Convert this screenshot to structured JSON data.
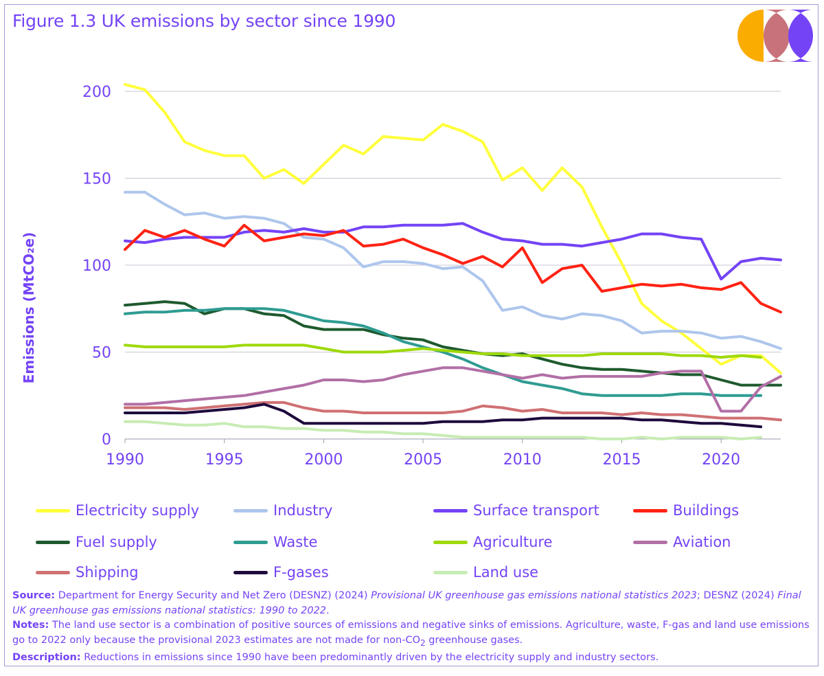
{
  "title": "Figure 1.3 UK emissions by sector since 1990",
  "colors": {
    "text": "#7443f6",
    "frame": "#a89ad8",
    "grid": "#c7c7d6",
    "logo": [
      "#fbac00",
      "#c8737c",
      "#7443f6"
    ]
  },
  "chart_data": {
    "type": "line",
    "ylabel": "Emissions (MtCO₂e)",
    "xlim": [
      1990,
      2023
    ],
    "ylim": [
      0,
      200
    ],
    "yticks": [
      0,
      50,
      100,
      150,
      200
    ],
    "xticks": [
      1990,
      1995,
      2000,
      2005,
      2010,
      2015,
      2020
    ],
    "grid": "horizontal",
    "legend_position": "bottom",
    "x_start": 1990,
    "series": [
      {
        "name": "Electricity supply",
        "color": "#ffff3c",
        "values": [
          204,
          201,
          188,
          171,
          166,
          163,
          163,
          150,
          155,
          147,
          158,
          169,
          164,
          174,
          173,
          172,
          181,
          177,
          171,
          149,
          156,
          143,
          156,
          145,
          122,
          101,
          78,
          68,
          61,
          52,
          43,
          48,
          48,
          38
        ]
      },
      {
        "name": "Industry",
        "color": "#aec6ec",
        "values": [
          142,
          142,
          135,
          129,
          130,
          127,
          128,
          127,
          124,
          116,
          115,
          110,
          99,
          102,
          102,
          101,
          98,
          99,
          91,
          74,
          76,
          71,
          69,
          72,
          71,
          68,
          61,
          62,
          62,
          61,
          58,
          59,
          56,
          52
        ]
      },
      {
        "name": "Surface transport",
        "color": "#7443f6",
        "values": [
          114,
          113,
          115,
          116,
          116,
          116,
          119,
          120,
          119,
          121,
          119,
          119,
          122,
          122,
          123,
          123,
          123,
          124,
          119,
          115,
          114,
          112,
          112,
          111,
          113,
          115,
          118,
          118,
          116,
          115,
          92,
          102,
          104,
          103
        ]
      },
      {
        "name": "Buildings",
        "color": "#ff2314",
        "values": [
          109,
          120,
          116,
          120,
          115,
          111,
          123,
          114,
          116,
          118,
          117,
          120,
          111,
          112,
          115,
          110,
          106,
          101,
          105,
          99,
          110,
          90,
          98,
          100,
          85,
          87,
          89,
          88,
          89,
          87,
          86,
          90,
          78,
          73
        ]
      },
      {
        "name": "Fuel supply",
        "color": "#1e5a2e",
        "values": [
          77,
          78,
          79,
          78,
          72,
          75,
          75,
          72,
          71,
          65,
          63,
          63,
          63,
          60,
          58,
          57,
          53,
          51,
          49,
          48,
          49,
          46,
          43,
          41,
          40,
          40,
          39,
          38,
          37,
          37,
          34,
          31,
          31,
          31
        ]
      },
      {
        "name": "Waste",
        "color": "#2f9c92",
        "values": [
          72,
          73,
          73,
          74,
          74,
          75,
          75,
          75,
          74,
          71,
          68,
          67,
          65,
          61,
          56,
          53,
          50,
          46,
          41,
          37,
          33,
          31,
          29,
          26,
          25,
          25,
          25,
          25,
          26,
          26,
          25,
          25,
          25
        ]
      },
      {
        "name": "Agriculture",
        "color": "#9ed90a",
        "values": [
          54,
          53,
          53,
          53,
          53,
          53,
          54,
          54,
          54,
          54,
          52,
          50,
          50,
          50,
          51,
          52,
          51,
          50,
          49,
          49,
          48,
          48,
          48,
          48,
          49,
          49,
          49,
          49,
          48,
          48,
          47,
          48,
          47
        ]
      },
      {
        "name": "Aviation",
        "color": "#b26fa6",
        "values": [
          20,
          20,
          21,
          22,
          23,
          24,
          25,
          27,
          29,
          31,
          34,
          34,
          33,
          34,
          37,
          39,
          41,
          41,
          39,
          37,
          35,
          37,
          35,
          36,
          36,
          36,
          36,
          38,
          39,
          39,
          16,
          16,
          30,
          36
        ]
      },
      {
        "name": "Shipping",
        "color": "#cf7073",
        "values": [
          18,
          18,
          18,
          17,
          18,
          19,
          20,
          21,
          21,
          18,
          16,
          16,
          15,
          15,
          15,
          15,
          15,
          16,
          19,
          18,
          16,
          17,
          15,
          15,
          15,
          14,
          15,
          14,
          14,
          13,
          12,
          12,
          12,
          11
        ]
      },
      {
        "name": "F-gases",
        "color": "#1e0a3c",
        "values": [
          15,
          15,
          15,
          15,
          16,
          17,
          18,
          20,
          16,
          9,
          9,
          9,
          9,
          9,
          9,
          9,
          10,
          10,
          10,
          11,
          11,
          12,
          12,
          12,
          12,
          12,
          11,
          11,
          10,
          9,
          9,
          8,
          7
        ]
      },
      {
        "name": "Land use",
        "color": "#c7ecb4",
        "values": [
          10,
          10,
          9,
          8,
          8,
          9,
          7,
          7,
          6,
          6,
          5,
          5,
          4,
          4,
          3,
          3,
          2,
          1,
          1,
          1,
          1,
          1,
          1,
          1,
          0,
          0,
          1,
          0,
          1,
          1,
          1,
          0,
          1
        ]
      }
    ]
  },
  "notes": {
    "source_label": "Source:",
    "source_text_1": " Department for Energy Security and Net Zero (DESNZ) (2024) ",
    "source_italic_1": "Provisional UK greenhouse gas emissions national statistics 2023",
    "source_text_2": "; DESNZ (2024) ",
    "source_italic_2": "Final UK greenhouse gas emissions national statistics: 1990 to 2022",
    "source_text_3": ".",
    "notes_label": "Notes:",
    "notes_text_1": " The land use sector is a combination of positive sources of emissions and negative sinks of emissions. Agriculture, waste, F-gas and land use emissions go to 2022 only because the provisional 2023 estimates are not made for non-CO",
    "notes_sub": "2",
    "notes_text_2": " greenhouse gases.",
    "description_label": "Description:",
    "description_text": " Reductions in emissions since 1990 have been predominantly driven by the electricity supply and industry sectors."
  }
}
